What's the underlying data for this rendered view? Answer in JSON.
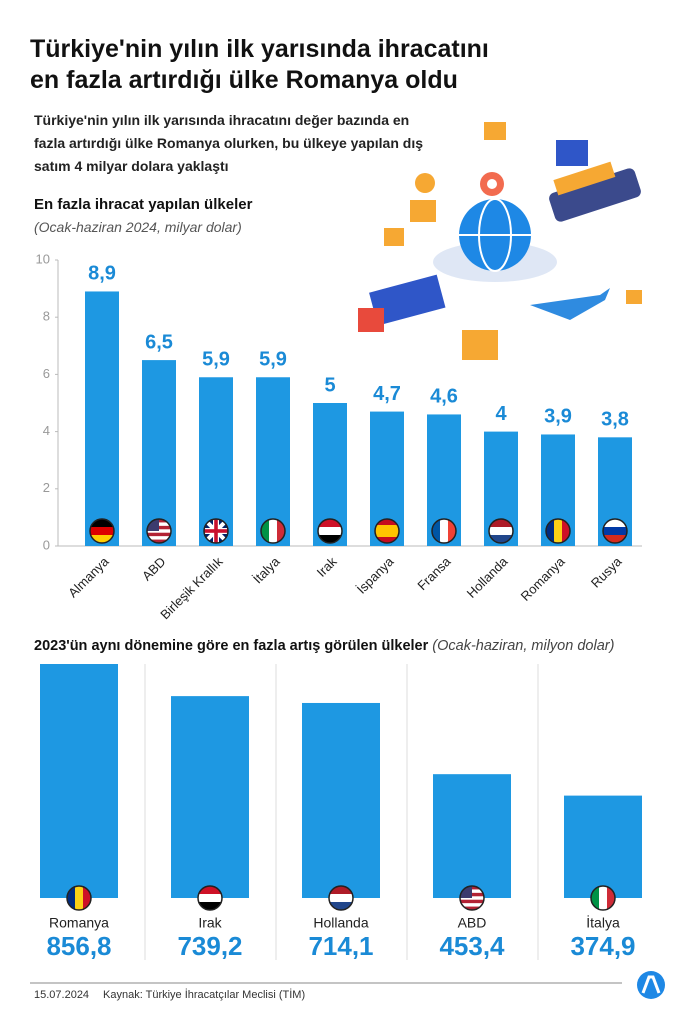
{
  "title": [
    "Türkiye'nin yılın ilk yarısında ihracatını",
    "en fazla artırdığı ülke Romanya oldu"
  ],
  "subtitle": "Türkiye'nin yılın ilk yarısında ihracatını değer bazında en fazla artırdığı ülke Romanya olurken, bu ülkeye yapılan dış satım 4 milyar dolara yaklaştı",
  "date": "15.07.2024",
  "source": "Kaynak: Türkiye İhracatçılar Meclisi (TİM)",
  "chart_data": [
    {
      "type": "bar",
      "title": "En fazla ihracat yapılan ülkeler",
      "subtitle": "(Ocak-haziran 2024, milyar dolar)",
      "categories": [
        "Almanya",
        "ABD",
        "Birleşik Krallık",
        "İtalya",
        "Irak",
        "İspanya",
        "Fransa",
        "Hollanda",
        "Romanya",
        "Rusya"
      ],
      "values": [
        8.9,
        6.5,
        5.9,
        5.9,
        5,
        4.7,
        4.6,
        4,
        3.9,
        3.8
      ],
      "value_labels": [
        "8,9",
        "6,5",
        "5,9",
        "5,9",
        "5",
        "4,7",
        "4,6",
        "4",
        "3,9",
        "3,8"
      ],
      "color": "#1e98e2",
      "ylim": [
        0,
        10
      ],
      "yticks": [
        0,
        2,
        4,
        6,
        8,
        10
      ]
    },
    {
      "type": "bar",
      "title": "2023'ün aynı dönemine göre en fazla artış görülen ülkeler",
      "subtitle": "(Ocak-haziran, milyon dolar)",
      "categories": [
        "Romanya",
        "Irak",
        "Hollanda",
        "ABD",
        "İtalya"
      ],
      "values": [
        856.8,
        739.2,
        714.1,
        453.4,
        374.9
      ],
      "value_labels": [
        "856,8",
        "739,2",
        "714,1",
        "453,4",
        "374,9"
      ],
      "color": "#1e98e2"
    }
  ]
}
